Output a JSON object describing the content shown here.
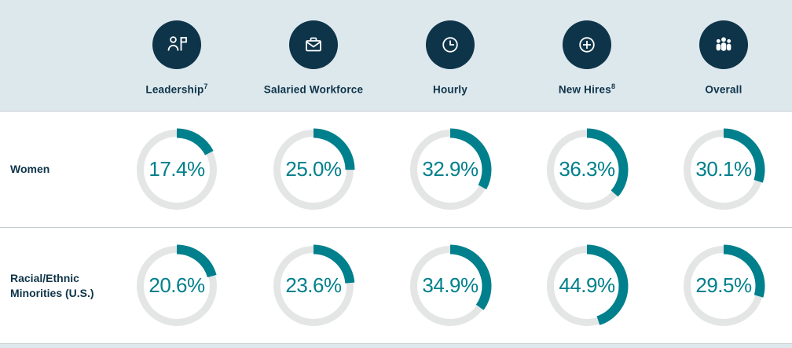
{
  "chart_data": {
    "type": "donut",
    "title": "Workforce representation donut grid",
    "categories": [
      "Leadership",
      "Salaried Workforce",
      "Hourly",
      "New Hires",
      "Overall"
    ],
    "series": [
      {
        "name": "Women",
        "values": [
          17.4,
          25.0,
          32.9,
          36.3,
          30.1
        ]
      },
      {
        "name": "Racial/Ethnic Minorities (U.S.)",
        "values": [
          20.6,
          23.6,
          34.9,
          44.9,
          29.5
        ]
      }
    ],
    "unit": "%",
    "value_range": [
      0,
      100
    ],
    "arc_start": "top",
    "arc_direction": "clockwise",
    "legend_position": "none",
    "colors": {
      "arc": "#00808C",
      "track": "#E4E5E5",
      "value_text": "#00808C",
      "header_bg": "#DDE8ED",
      "icon_bg": "#0E3449",
      "label_text": "#0E3449"
    }
  },
  "header": {
    "columns": [
      {
        "label": "Leadership",
        "superscript": "7",
        "icon": "leadership-flag-icon"
      },
      {
        "label": "Salaried Workforce",
        "superscript": "",
        "icon": "briefcase-icon"
      },
      {
        "label": "Hourly",
        "superscript": "",
        "icon": "clock-icon"
      },
      {
        "label": "New Hires",
        "superscript": "8",
        "icon": "plus-circle-icon"
      },
      {
        "label": "Overall",
        "superscript": "",
        "icon": "people-group-icon"
      }
    ]
  }
}
